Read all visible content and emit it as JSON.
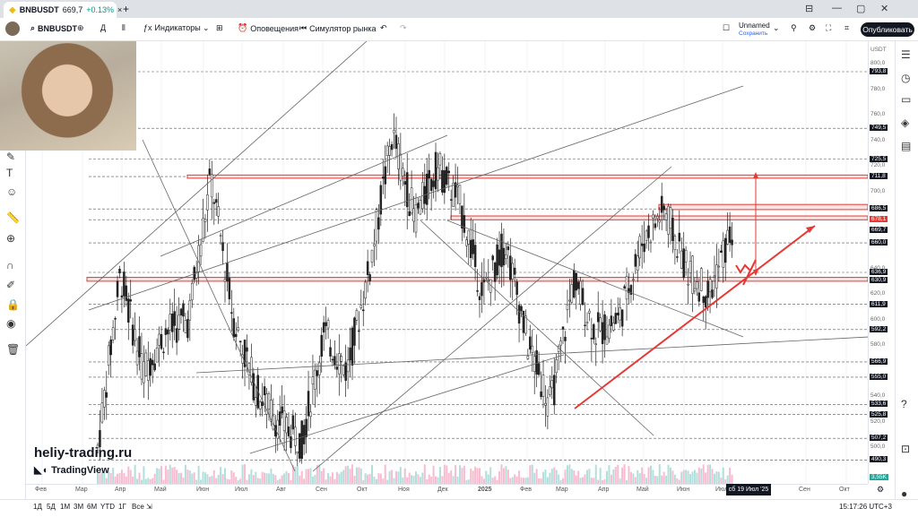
{
  "browser": {
    "tab_title": "BNBUSDT",
    "tab_price": "669,7",
    "tab_change": "+0.13%",
    "add_tab": "+"
  },
  "toolbar": {
    "symbol": "BNBUSDT",
    "interval": "Д",
    "indicators": "Индикаторы",
    "alerts": "Оповещения",
    "replay": "Симулятор рынка",
    "layout_name": "Unnamed",
    "layout_status": "Сохранить",
    "publish": "Опубликовать"
  },
  "price_axis": {
    "currency": "USDT",
    "labels": [
      "800,0",
      "780,0",
      "760,0",
      "740,0",
      "720,0",
      "700,0",
      "660,0",
      "640,0",
      "620,0",
      "600,0",
      "580,0",
      "540,0",
      "520,0",
      "500,0"
    ],
    "marked": [
      {
        "text": "793,8",
        "price": 793.8
      },
      {
        "text": "749,5",
        "price": 749.5
      },
      {
        "text": "725,5",
        "price": 725.5
      },
      {
        "text": "711,8",
        "price": 711.8
      },
      {
        "text": "686,5",
        "price": 686.5
      },
      {
        "text": "678,1",
        "price": 678.1
      },
      {
        "text": "669,7",
        "price": 669.7
      },
      {
        "text": "660,0",
        "price": 660.0
      },
      {
        "text": "636,9",
        "price": 636.9
      },
      {
        "text": "630,9",
        "price": 630.9
      },
      {
        "text": "611,9",
        "price": 611.9
      },
      {
        "text": "592,2",
        "price": 592.2
      },
      {
        "text": "566,9",
        "price": 566.9
      },
      {
        "text": "555,0",
        "price": 555.0
      },
      {
        "text": "533,6",
        "price": 533.6
      },
      {
        "text": "525,8",
        "price": 525.8
      },
      {
        "text": "507,2",
        "price": 507.2
      },
      {
        "text": "490,3",
        "price": 490.3
      }
    ],
    "volume": "3,55K"
  },
  "time_axis": {
    "labels": [
      "Фев",
      "Мар",
      "Апр",
      "Май",
      "Июн",
      "Июл",
      "Авг",
      "Сен",
      "Окт",
      "Ноя",
      "Дек",
      "2025",
      "Фев",
      "Мар",
      "Апр",
      "Май",
      "Июн",
      "Июл",
      "Сен",
      "Окт"
    ],
    "crosshair_date": "сб 19 Июл '25"
  },
  "bottom_bar": {
    "ranges": [
      "1Д",
      "5Д",
      "1М",
      "3М",
      "6М",
      "YTD",
      "1Г",
      "Все"
    ],
    "clock": "15:17:26 UTC+3"
  },
  "watermark": {
    "site": "heliy-trading.ru",
    "brand": "TradingView"
  },
  "colors": {
    "red": "#e53935",
    "dark": "#131722",
    "grid": "#f0f3fa"
  },
  "chart_data": {
    "type": "candlestick",
    "symbol": "BNBUSDT",
    "timeframe": "1D",
    "xlabels": [
      "Фев",
      "Мар",
      "Апр",
      "Май",
      "Июн",
      "Июл",
      "Авг",
      "Сен",
      "Окт",
      "Ноя",
      "Дек",
      "2025",
      "Фев",
      "Мар",
      "Апр",
      "Май",
      "Июн",
      "Июл",
      "Сен",
      "Окт"
    ],
    "ylim": [
      480,
      805
    ],
    "close_path": [
      {
        "m": "Фев",
        "p": 500
      },
      {
        "m": "Мар",
        "p": 636
      },
      {
        "m": "Мар",
        "p": 560
      },
      {
        "m": "Апр",
        "p": 590
      },
      {
        "m": "Май",
        "p": 600
      },
      {
        "m": "Июн",
        "p": 711
      },
      {
        "m": "Июн",
        "p": 600
      },
      {
        "m": "Июл",
        "p": 545
      },
      {
        "m": "Авг",
        "p": 520
      },
      {
        "m": "Сен",
        "p": 505
      },
      {
        "m": "Окт",
        "p": 590
      },
      {
        "m": "Ноя",
        "p": 560
      },
      {
        "m": "Ноя",
        "p": 640
      },
      {
        "m": "Дек",
        "p": 745
      },
      {
        "m": "Дек",
        "p": 680
      },
      {
        "m": "2025",
        "p": 720
      },
      {
        "m": "2025",
        "p": 690
      },
      {
        "m": "Фев",
        "p": 620
      },
      {
        "m": "Фев",
        "p": 660
      },
      {
        "m": "Мар",
        "p": 580
      },
      {
        "m": "Мар",
        "p": 533
      },
      {
        "m": "Апр",
        "p": 630
      },
      {
        "m": "Апр",
        "p": 590
      },
      {
        "m": "Май",
        "p": 600
      },
      {
        "m": "Май",
        "p": 660
      },
      {
        "m": "Июн",
        "p": 686
      },
      {
        "m": "Июн",
        "p": 640
      },
      {
        "m": "Июн",
        "p": 620
      },
      {
        "m": "Июл",
        "p": 669.7
      }
    ],
    "horizontal_levels": [
      793.8,
      749.5,
      725.5,
      711.8,
      686.5,
      678.1,
      660.0,
      636.9,
      630.9,
      611.9,
      592.2,
      566.9,
      555.0,
      533.6,
      525.8,
      507.2,
      490.3
    ],
    "highlighted_zones": [
      [
        710.5,
        713
      ],
      [
        678,
        681
      ],
      [
        686,
        690
      ],
      [
        630,
        633
      ]
    ]
  }
}
